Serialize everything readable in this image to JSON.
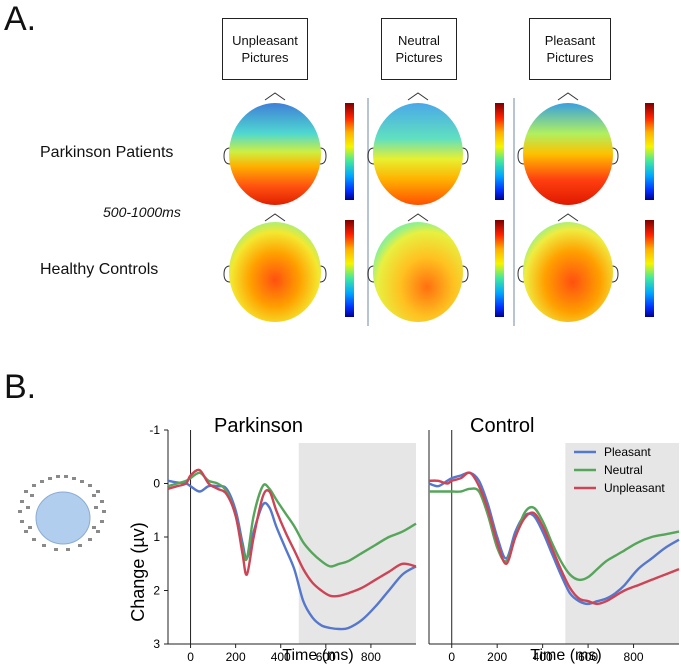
{
  "panel_a": {
    "letter": "A.",
    "conditions": [
      {
        "line1": "Unpleasant",
        "line2": "Pictures"
      },
      {
        "line1": "Neutral",
        "line2": "Pictures"
      },
      {
        "line1": "Pleasant",
        "line2": "Pictures"
      }
    ],
    "rows": [
      "Parkinson Patients",
      "Healthy Controls"
    ],
    "time_window": "500-1000ms",
    "colorbar_colors": [
      "#7a0000",
      "#ff2000",
      "#ffb000",
      "#f5f500",
      "#40e8a0",
      "#00a8ff",
      "#0030ff",
      "#000090"
    ]
  },
  "panel_b": {
    "letter": "B."
  },
  "chart_data": [
    {
      "type": "line",
      "title": "Parkinson",
      "xlabel": "Time (ms)",
      "ylabel": "Change (µv)",
      "xlim": [
        -100,
        1000
      ],
      "ylim": [
        -1,
        3
      ],
      "y_inverted": true,
      "xticks": [
        0,
        200,
        400,
        600,
        800
      ],
      "xtick_labels": [
        "0",
        "200",
        "400",
        "600",
        "800"
      ],
      "yticks": [
        -1,
        0,
        1,
        2,
        3
      ],
      "ytick_labels": [
        "-1",
        "0",
        "1",
        "2",
        "3"
      ],
      "shaded_interval": [
        480,
        1000
      ],
      "series": [
        {
          "name": "Pleasant",
          "color": "#5577cc",
          "x": [
            -100,
            -60,
            -20,
            0,
            40,
            80,
            120,
            160,
            200,
            230,
            250,
            280,
            320,
            350,
            380,
            420,
            460,
            500,
            540,
            580,
            620,
            660,
            700,
            760,
            820,
            880,
            940,
            1000
          ],
          "y": [
            -0.05,
            -0.02,
            0.0,
            0.05,
            0.15,
            0.05,
            0.05,
            0.1,
            0.5,
            1.1,
            1.4,
            0.9,
            0.4,
            0.45,
            0.8,
            1.2,
            1.6,
            2.2,
            2.5,
            2.65,
            2.7,
            2.72,
            2.7,
            2.55,
            2.3,
            2.0,
            1.7,
            1.55
          ]
        },
        {
          "name": "Neutral",
          "color": "#55a55a",
          "x": [
            -100,
            -60,
            -20,
            0,
            40,
            80,
            120,
            160,
            200,
            230,
            250,
            280,
            320,
            350,
            380,
            420,
            460,
            500,
            540,
            580,
            620,
            660,
            700,
            760,
            820,
            880,
            940,
            1000
          ],
          "y": [
            0.05,
            0.0,
            -0.05,
            -0.1,
            -0.2,
            -0.05,
            0.0,
            0.15,
            0.6,
            1.2,
            1.4,
            0.6,
            0.05,
            0.1,
            0.3,
            0.55,
            0.8,
            1.1,
            1.3,
            1.45,
            1.55,
            1.5,
            1.45,
            1.3,
            1.15,
            1.0,
            0.9,
            0.75
          ]
        },
        {
          "name": "Unpleasant",
          "color": "#cc4455",
          "x": [
            -100,
            -60,
            -20,
            0,
            40,
            80,
            120,
            160,
            200,
            230,
            250,
            280,
            320,
            350,
            380,
            420,
            460,
            500,
            540,
            580,
            620,
            660,
            700,
            760,
            820,
            880,
            940,
            1000
          ],
          "y": [
            0.1,
            0.05,
            0.0,
            -0.15,
            -0.25,
            0.0,
            0.1,
            0.2,
            0.6,
            1.3,
            1.7,
            1.0,
            0.25,
            0.15,
            0.5,
            0.9,
            1.25,
            1.6,
            1.85,
            2.0,
            2.1,
            2.1,
            2.05,
            1.95,
            1.8,
            1.65,
            1.5,
            1.55
          ]
        }
      ]
    },
    {
      "type": "line",
      "title": "Control",
      "xlabel": "Time (ms)",
      "ylabel": "",
      "xlim": [
        -100,
        1000
      ],
      "ylim": [
        -1,
        3
      ],
      "y_inverted": true,
      "xticks": [
        0,
        200,
        400,
        600,
        800
      ],
      "xtick_labels": [
        "0",
        "200",
        "400",
        "600",
        "800"
      ],
      "yticks": [],
      "ytick_labels": [],
      "shaded_interval": [
        500,
        1000
      ],
      "legend": {
        "position": "top-right",
        "entries": [
          "Pleasant",
          "Neutral",
          "Unpleasant"
        ]
      },
      "series": [
        {
          "name": "Pleasant",
          "color": "#5577cc",
          "x": [
            -100,
            -60,
            -20,
            0,
            40,
            80,
            120,
            160,
            200,
            240,
            280,
            320,
            360,
            400,
            440,
            480,
            520,
            560,
            600,
            640,
            680,
            720,
            760,
            820,
            880,
            940,
            1000
          ],
          "y": [
            0.0,
            0.05,
            -0.05,
            -0.1,
            -0.15,
            -0.2,
            -0.05,
            0.4,
            1.0,
            1.4,
            0.9,
            0.6,
            0.6,
            0.9,
            1.3,
            1.7,
            2.05,
            2.2,
            2.25,
            2.2,
            2.15,
            2.05,
            1.9,
            1.6,
            1.4,
            1.2,
            1.05
          ]
        },
        {
          "name": "Neutral",
          "color": "#55a55a",
          "x": [
            -100,
            -60,
            -20,
            0,
            40,
            80,
            120,
            160,
            200,
            240,
            280,
            320,
            360,
            400,
            440,
            480,
            520,
            560,
            600,
            640,
            680,
            720,
            760,
            820,
            880,
            940,
            1000
          ],
          "y": [
            0.15,
            0.15,
            0.15,
            0.15,
            0.15,
            0.1,
            0.15,
            0.6,
            1.2,
            1.45,
            1.0,
            0.55,
            0.45,
            0.7,
            1.1,
            1.45,
            1.7,
            1.8,
            1.75,
            1.6,
            1.45,
            1.35,
            1.25,
            1.1,
            1.0,
            0.95,
            0.9
          ]
        },
        {
          "name": "Unpleasant",
          "color": "#cc4455",
          "x": [
            -100,
            -60,
            -20,
            0,
            40,
            80,
            120,
            160,
            200,
            240,
            280,
            320,
            360,
            400,
            440,
            480,
            520,
            560,
            600,
            640,
            680,
            720,
            760,
            820,
            880,
            940,
            1000
          ],
          "y": [
            -0.05,
            -0.05,
            0.0,
            -0.05,
            -0.1,
            -0.2,
            0.05,
            0.5,
            1.1,
            1.5,
            1.0,
            0.65,
            0.55,
            0.8,
            1.2,
            1.6,
            1.95,
            2.15,
            2.2,
            2.25,
            2.2,
            2.1,
            2.0,
            1.9,
            1.8,
            1.7,
            1.6
          ]
        }
      ]
    }
  ]
}
